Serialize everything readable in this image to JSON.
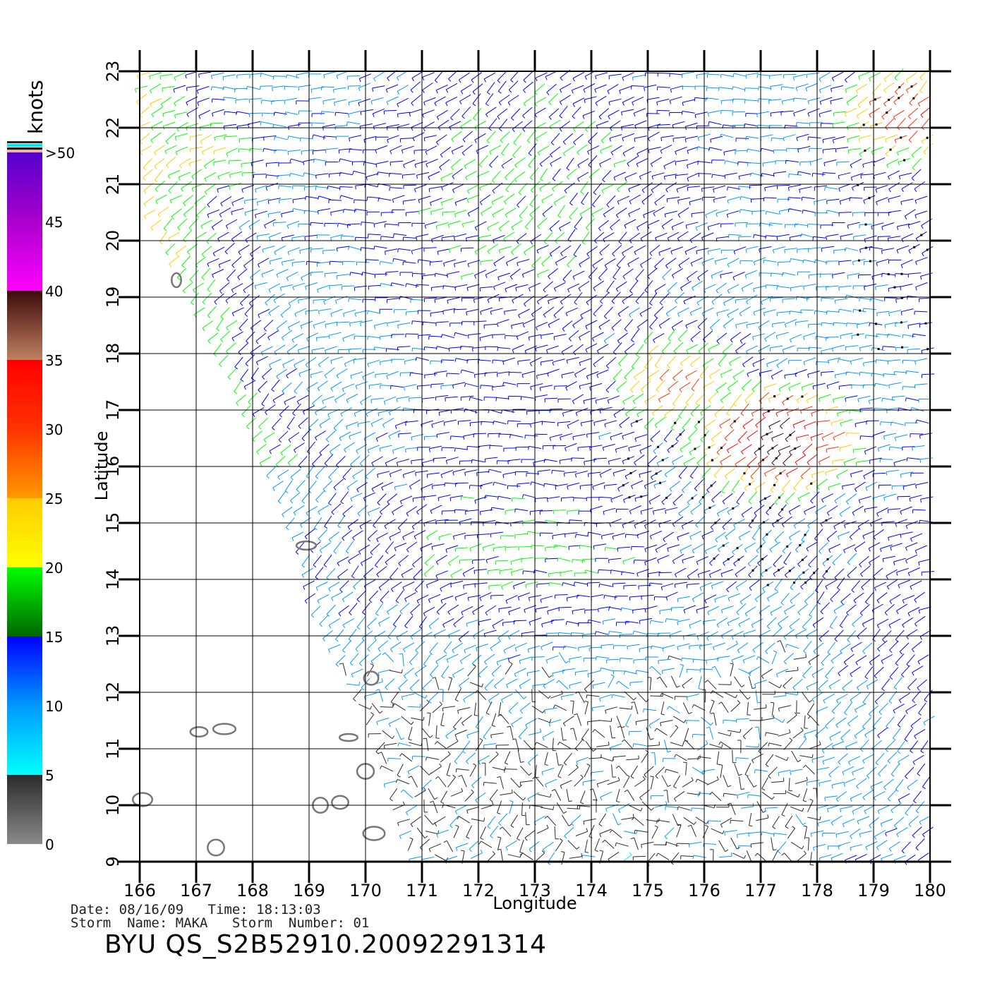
{
  "footer": {
    "date_label": "Date:",
    "date_value": "08/16/09",
    "time_label": "Time:",
    "time_value": "18:13:03",
    "storm_name_label": "Storm  Name:",
    "storm_name_value": "MAKA",
    "storm_number_label": "Storm  Number:",
    "storm_number_value": "01",
    "product_id": "BYU  QS_S2B52910.20092291314"
  },
  "chart_data": {
    "type": "wind-barb map",
    "xlabel": "Longitude",
    "ylabel": "Latitude",
    "xlim": [
      166,
      180
    ],
    "ylim": [
      9,
      23
    ],
    "x_ticks": [
      "166",
      "167",
      "168",
      "169",
      "170",
      "171",
      "172",
      "173",
      "174",
      "175",
      "176",
      "177",
      "178",
      "179",
      "180"
    ],
    "y_ticks": [
      "9",
      "10",
      "11",
      "12",
      "13",
      "14",
      "15",
      "16",
      "17",
      "18",
      "19",
      "20",
      "21",
      "22",
      "23"
    ],
    "grid": true,
    "colorbar": {
      "title": "knots",
      "labels": [
        ">50",
        "45",
        "40",
        "35",
        "30",
        "25",
        "20",
        "15",
        "10",
        "5",
        "0"
      ],
      "stops": [
        {
          "value": 0,
          "color": "#8a8a8a"
        },
        {
          "value": 5,
          "color": "#2b2b2b"
        },
        {
          "value": 5.01,
          "color": "#00ffff"
        },
        {
          "value": 10,
          "color": "#0099ff"
        },
        {
          "value": 15,
          "color": "#0000ff"
        },
        {
          "value": 15.01,
          "color": "#006600"
        },
        {
          "value": 20,
          "color": "#00ff00"
        },
        {
          "value": 20.01,
          "color": "#ffff00"
        },
        {
          "value": 25,
          "color": "#ffcc00"
        },
        {
          "value": 25.01,
          "color": "#ff9900"
        },
        {
          "value": 30,
          "color": "#ff3300"
        },
        {
          "value": 35,
          "color": "#ff0000"
        },
        {
          "value": 35.01,
          "color": "#c08060"
        },
        {
          "value": 40,
          "color": "#3d0a0a"
        },
        {
          "value": 40.01,
          "color": "#ff00ff"
        },
        {
          "value": 45,
          "color": "#aa00cc"
        },
        {
          "value": 50,
          "color": "#5500cc"
        }
      ]
    },
    "wind_field": {
      "swath_left_edge": [
        [
          166.0,
          23.0
        ],
        [
          166.2,
          20.5
        ],
        [
          167.7,
          17.5
        ],
        [
          168.9,
          14.5
        ],
        [
          169.0,
          13.8
        ],
        [
          170.2,
          11.2
        ],
        [
          170.9,
          9.0
        ]
      ],
      "high_wind_centers": [
        {
          "lon": 177.3,
          "lat": 16.5,
          "speed": 38
        },
        {
          "lon": 175.5,
          "lat": 17.5,
          "speed": 26
        },
        {
          "lon": 179.7,
          "lat": 22.3,
          "speed": 30
        },
        {
          "lon": 167.0,
          "lat": 21.5,
          "speed": 22
        }
      ],
      "calm_region": {
        "lon_range": [
          168.5,
          178.0
        ],
        "lat_range": [
          9.0,
          14.2
        ]
      },
      "rain_flag_zones": [
        {
          "lon_range": [
            176.1,
            178.2
          ],
          "lat_range": [
            13.8,
            17.3
          ]
        },
        {
          "lon_range": [
            178.7,
            180.0
          ],
          "lat_range": [
            18.0,
            22.8
          ]
        },
        {
          "lon_range": [
            174.5,
            176.2
          ],
          "lat_range": [
            15.0,
            16.8
          ]
        }
      ]
    },
    "islands": [
      {
        "lon": 166.65,
        "lat": 19.3
      },
      {
        "lon": 168.95,
        "lat": 14.6
      },
      {
        "lon": 170.1,
        "lat": 12.25
      },
      {
        "lon": 167.05,
        "lat": 11.3
      },
      {
        "lon": 167.5,
        "lat": 11.35
      },
      {
        "lon": 169.7,
        "lat": 11.2
      },
      {
        "lon": 170.0,
        "lat": 10.6
      },
      {
        "lon": 169.2,
        "lat": 10.0
      },
      {
        "lon": 169.55,
        "lat": 10.05
      },
      {
        "lon": 170.15,
        "lat": 9.5
      },
      {
        "lon": 167.35,
        "lat": 9.25
      },
      {
        "lon": 166.05,
        "lat": 10.1
      }
    ]
  }
}
